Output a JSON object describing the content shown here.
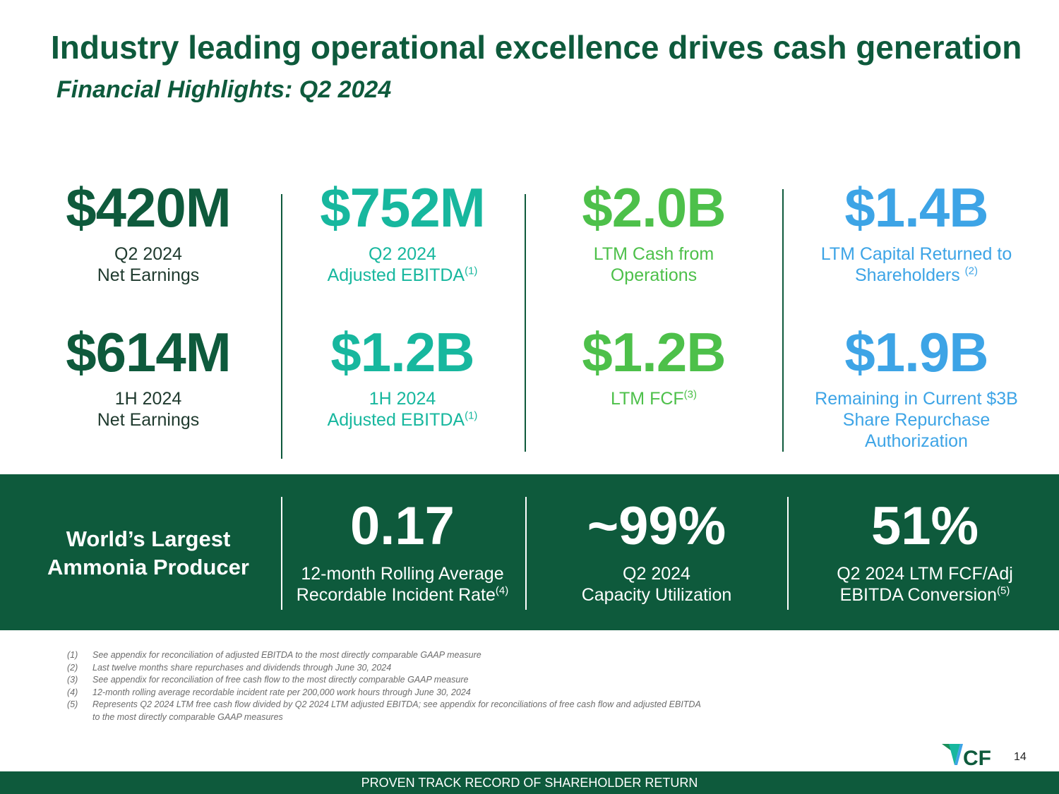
{
  "header": {
    "title": "Industry leading operational excellence drives cash generation",
    "subtitle": "Financial Highlights: Q2 2024"
  },
  "colors": {
    "dark_green": "#0e5a3c",
    "teal": "#17b79e",
    "green": "#4dc04a",
    "blue": "#3da4e6"
  },
  "metrics": {
    "col1": {
      "top": {
        "value": "$420M",
        "label_1": "Q2 2024",
        "label_2": "Net Earnings"
      },
      "bottom": {
        "value": "$614M",
        "label_1": "1H 2024",
        "label_2": "Net Earnings"
      }
    },
    "col2": {
      "top": {
        "value": "$752M",
        "label_1": "Q2 2024",
        "label_2": "Adjusted EBITDA",
        "note": "(1)"
      },
      "bottom": {
        "value": "$1.2B",
        "label_1": "1H 2024",
        "label_2": "Adjusted EBITDA",
        "note": "(1)"
      }
    },
    "col3": {
      "top": {
        "value": "$2.0B",
        "label_1": "LTM Cash from",
        "label_2": "Operations"
      },
      "bottom": {
        "value": "$1.2B",
        "label_1": "LTM FCF",
        "note": "(3)"
      }
    },
    "col4": {
      "top": {
        "value": "$1.4B",
        "label_1": "LTM Capital Returned to",
        "label_2": "Shareholders ",
        "note": "(2)"
      },
      "bottom": {
        "value": "$1.9B",
        "label_1": "Remaining in Current $3B",
        "label_2": "Share Repurchase",
        "label_3": "Authorization"
      }
    }
  },
  "band": {
    "title_1": "World’s Largest",
    "title_2": "Ammonia Producer",
    "items": [
      {
        "value": "0.17",
        "label_1": "12-month Rolling Average",
        "label_2": "Recordable Incident Rate",
        "note": "(4)"
      },
      {
        "value": "~99%",
        "label_1": "Q2 2024",
        "label_2": "Capacity Utilization"
      },
      {
        "value": "51%",
        "label_1": "Q2 2024 LTM FCF/Adj",
        "label_2": "EBITDA Conversion",
        "note": "(5)"
      }
    ]
  },
  "footnotes": [
    {
      "num": "(1)",
      "text": "See appendix for reconciliation of adjusted EBITDA to the most directly comparable GAAP measure"
    },
    {
      "num": "(2)",
      "text": "Last twelve months share repurchases and dividends through June 30, 2024"
    },
    {
      "num": "(3)",
      "text": "See appendix for reconciliation of free cash flow to the most directly comparable GAAP measure"
    },
    {
      "num": "(4)",
      "text": "12-month rolling average recordable incident rate per 200,000 work hours through June 30, 2024"
    },
    {
      "num": "(5)",
      "text": "Represents Q2 2024 LTM free cash flow divided by Q2 2024 LTM adjusted EBITDA; see appendix for reconciliations of free cash flow and adjusted EBITDA"
    }
  ],
  "footnote_5_cont": "to the most directly comparable GAAP measures",
  "logo": {
    "text": "CF",
    "icon": "cf-logo-icon"
  },
  "page_number": "14",
  "footer": "PROVEN TRACK RECORD OF SHAREHOLDER RETURN"
}
